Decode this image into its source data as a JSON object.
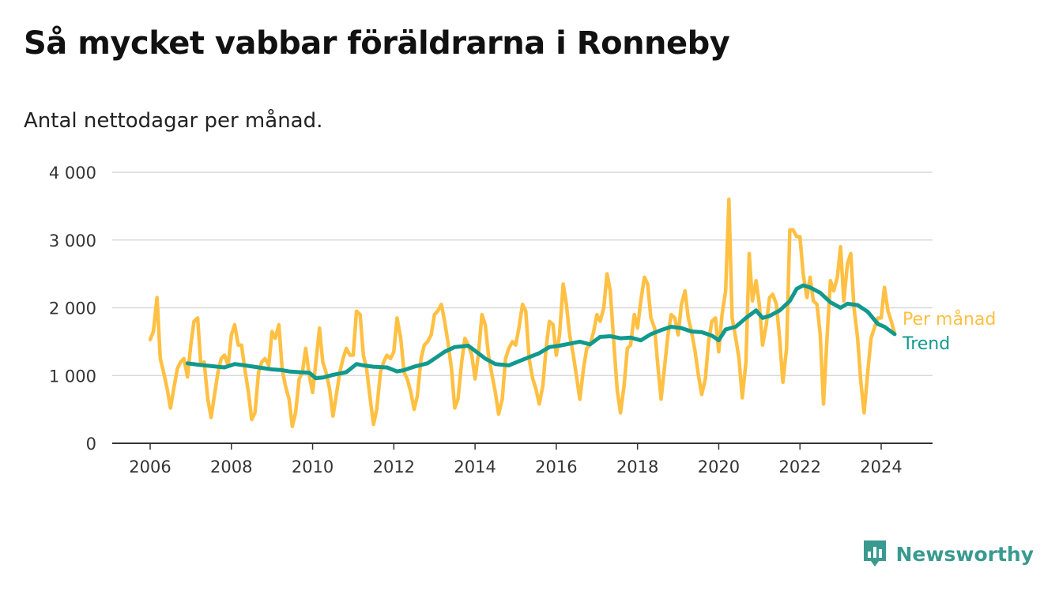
{
  "title": "Så mycket vabbar föräldrarna i Ronneby",
  "subtitle": "Antal nettodagar per månad.",
  "brand": "Newsworthy",
  "colors": {
    "monthly": "#FFC043",
    "trend": "#11998E",
    "grid": "#d9d9d9",
    "axis": "#333333"
  },
  "chart_data": {
    "type": "line",
    "title": "Så mycket vabbar föräldrarna i Ronneby",
    "subtitle": "Antal nettodagar per månad.",
    "xlabel": "",
    "ylabel": "",
    "xlim": [
      2005.1,
      2025.3
    ],
    "ylim": [
      0,
      4000
    ],
    "yticks": [
      0,
      1000,
      2000,
      3000,
      4000
    ],
    "ytick_labels": [
      "0",
      "1 000",
      "2 000",
      "3 000",
      "4 000"
    ],
    "xticks": [
      2006,
      2008,
      2010,
      2012,
      2014,
      2016,
      2018,
      2020,
      2022,
      2024
    ],
    "xtick_labels": [
      "2006",
      "2008",
      "2010",
      "2012",
      "2014",
      "2016",
      "2018",
      "2020",
      "2022",
      "2024"
    ],
    "grid": true,
    "series": [
      {
        "name": "Per månad",
        "color": "#FFC043",
        "x": [
          2006.0,
          2006.08,
          2006.17,
          2006.25,
          2006.33,
          2006.42,
          2006.5,
          2006.58,
          2006.67,
          2006.75,
          2006.83,
          2006.92,
          2007.0,
          2007.08,
          2007.17,
          2007.25,
          2007.33,
          2007.42,
          2007.5,
          2007.58,
          2007.67,
          2007.75,
          2007.83,
          2007.92,
          2008.0,
          2008.08,
          2008.17,
          2008.25,
          2008.33,
          2008.42,
          2008.5,
          2008.58,
          2008.67,
          2008.75,
          2008.83,
          2008.92,
          2009.0,
          2009.08,
          2009.17,
          2009.25,
          2009.33,
          2009.42,
          2009.5,
          2009.58,
          2009.67,
          2009.75,
          2009.83,
          2009.92,
          2010.0,
          2010.08,
          2010.17,
          2010.25,
          2010.33,
          2010.42,
          2010.5,
          2010.58,
          2010.67,
          2010.75,
          2010.83,
          2010.92,
          2011.0,
          2011.08,
          2011.17,
          2011.25,
          2011.33,
          2011.42,
          2011.5,
          2011.58,
          2011.67,
          2011.75,
          2011.83,
          2011.92,
          2012.0,
          2012.08,
          2012.17,
          2012.25,
          2012.33,
          2012.42,
          2012.5,
          2012.58,
          2012.67,
          2012.75,
          2012.83,
          2012.92,
          2013.0,
          2013.08,
          2013.17,
          2013.25,
          2013.33,
          2013.42,
          2013.5,
          2013.58,
          2013.67,
          2013.75,
          2013.83,
          2013.92,
          2014.0,
          2014.08,
          2014.17,
          2014.25,
          2014.33,
          2014.42,
          2014.5,
          2014.58,
          2014.67,
          2014.75,
          2014.83,
          2014.92,
          2015.0,
          2015.08,
          2015.17,
          2015.25,
          2015.33,
          2015.42,
          2015.5,
          2015.58,
          2015.67,
          2015.75,
          2015.83,
          2015.92,
          2016.0,
          2016.08,
          2016.17,
          2016.25,
          2016.33,
          2016.42,
          2016.5,
          2016.58,
          2016.67,
          2016.75,
          2016.83,
          2016.92,
          2017.0,
          2017.08,
          2017.17,
          2017.25,
          2017.33,
          2017.42,
          2017.5,
          2017.58,
          2017.67,
          2017.75,
          2017.83,
          2017.92,
          2018.0,
          2018.08,
          2018.17,
          2018.25,
          2018.33,
          2018.42,
          2018.5,
          2018.58,
          2018.67,
          2018.75,
          2018.83,
          2018.92,
          2019.0,
          2019.08,
          2019.17,
          2019.25,
          2019.33,
          2019.42,
          2019.5,
          2019.58,
          2019.67,
          2019.75,
          2019.83,
          2019.92,
          2020.0,
          2020.08,
          2020.17,
          2020.25,
          2020.33,
          2020.42,
          2020.5,
          2020.58,
          2020.67,
          2020.75,
          2020.83,
          2020.92,
          2021.0,
          2021.08,
          2021.17,
          2021.25,
          2021.33,
          2021.42,
          2021.5,
          2021.58,
          2021.67,
          2021.75,
          2021.83,
          2021.92,
          2022.0,
          2022.08,
          2022.17,
          2022.25,
          2022.33,
          2022.42,
          2022.5,
          2022.58,
          2022.67,
          2022.75,
          2022.83,
          2022.92,
          2023.0,
          2023.08,
          2023.17,
          2023.25,
          2023.33,
          2023.42,
          2023.5,
          2023.58,
          2023.67,
          2023.75,
          2023.83,
          2023.92,
          2024.0,
          2024.08,
          2024.17,
          2024.25,
          2024.33
        ],
        "values": [
          1530,
          1650,
          2150,
          1250,
          1050,
          800,
          520,
          800,
          1100,
          1200,
          1250,
          980,
          1450,
          1800,
          1850,
          1150,
          1200,
          650,
          380,
          700,
          1050,
          1250,
          1300,
          1150,
          1600,
          1750,
          1450,
          1450,
          1100,
          750,
          350,
          450,
          1050,
          1200,
          1250,
          1150,
          1650,
          1550,
          1750,
          1100,
          850,
          650,
          250,
          450,
          950,
          1050,
          1400,
          1000,
          750,
          1200,
          1700,
          1200,
          1050,
          800,
          400,
          700,
          1050,
          1250,
          1400,
          1300,
          1300,
          1950,
          1900,
          1300,
          1100,
          650,
          280,
          500,
          1050,
          1200,
          1300,
          1250,
          1350,
          1850,
          1550,
          1050,
          950,
          750,
          500,
          700,
          1250,
          1450,
          1500,
          1600,
          1900,
          1950,
          2050,
          1800,
          1500,
          1100,
          520,
          650,
          1200,
          1550,
          1450,
          1300,
          950,
          1300,
          1900,
          1750,
          1300,
          1000,
          750,
          430,
          650,
          1250,
          1400,
          1500,
          1450,
          1700,
          2050,
          1950,
          1250,
          950,
          800,
          580,
          850,
          1400,
          1800,
          1750,
          1300,
          1600,
          2350,
          2050,
          1600,
          1300,
          980,
          650,
          1100,
          1400,
          1450,
          1650,
          1900,
          1800,
          2000,
          2500,
          2250,
          1450,
          780,
          450,
          850,
          1400,
          1450,
          1900,
          1700,
          2100,
          2450,
          2350,
          1850,
          1700,
          1150,
          650,
          1150,
          1600,
          1900,
          1850,
          1600,
          2050,
          2250,
          1850,
          1650,
          1350,
          1000,
          720,
          950,
          1500,
          1800,
          1850,
          1350,
          1900,
          2250,
          3600,
          1850,
          1550,
          1250,
          670,
          1200,
          2800,
          2100,
          2400,
          2050,
          1450,
          1750,
          2150,
          2200,
          2050,
          1550,
          900,
          1400,
          3150,
          3150,
          3050,
          3050,
          2500,
          2150,
          2450,
          2100,
          2050,
          1600,
          580,
          1600,
          2400,
          2250,
          2450,
          2900,
          2100,
          2650,
          2800,
          2000,
          1550,
          900,
          450,
          1050,
          1550,
          1700,
          1850,
          1850,
          2300,
          1950,
          1800,
          1620
        ]
      },
      {
        "name": "Trend",
        "color": "#11998E",
        "x": [
          2006.92,
          2007.17,
          2007.5,
          2007.83,
          2008.08,
          2008.33,
          2008.67,
          2009.0,
          2009.25,
          2009.42,
          2009.67,
          2009.92,
          2010.08,
          2010.25,
          2010.5,
          2010.83,
          2011.08,
          2011.25,
          2011.5,
          2011.83,
          2012.08,
          2012.25,
          2012.5,
          2012.83,
          2013.08,
          2013.25,
          2013.5,
          2013.83,
          2014.08,
          2014.25,
          2014.5,
          2014.83,
          2015.08,
          2015.33,
          2015.58,
          2015.83,
          2016.08,
          2016.33,
          2016.58,
          2016.83,
          2017.08,
          2017.33,
          2017.58,
          2017.83,
          2018.08,
          2018.33,
          2018.58,
          2018.83,
          2019.08,
          2019.33,
          2019.58,
          2019.83,
          2020.0,
          2020.17,
          2020.42,
          2020.67,
          2020.92,
          2021.08,
          2021.25,
          2021.5,
          2021.75,
          2021.92,
          2022.08,
          2022.25,
          2022.5,
          2022.75,
          2023.0,
          2023.17,
          2023.42,
          2023.67,
          2023.92,
          2024.08,
          2024.33
        ],
        "values": [
          1180,
          1160,
          1140,
          1120,
          1170,
          1150,
          1120,
          1090,
          1080,
          1060,
          1050,
          1040,
          960,
          970,
          1010,
          1050,
          1170,
          1150,
          1130,
          1120,
          1060,
          1080,
          1130,
          1180,
          1280,
          1350,
          1420,
          1440,
          1330,
          1250,
          1170,
          1150,
          1210,
          1270,
          1330,
          1420,
          1440,
          1470,
          1500,
          1460,
          1570,
          1580,
          1550,
          1560,
          1520,
          1610,
          1670,
          1720,
          1700,
          1650,
          1640,
          1590,
          1520,
          1680,
          1720,
          1850,
          1960,
          1850,
          1880,
          1960,
          2100,
          2280,
          2330,
          2300,
          2220,
          2080,
          2000,
          2060,
          2040,
          1940,
          1760,
          1720,
          1610
        ]
      }
    ],
    "legend": [
      "Per månad",
      "Trend"
    ],
    "legend_placement": "right, at line ends"
  }
}
